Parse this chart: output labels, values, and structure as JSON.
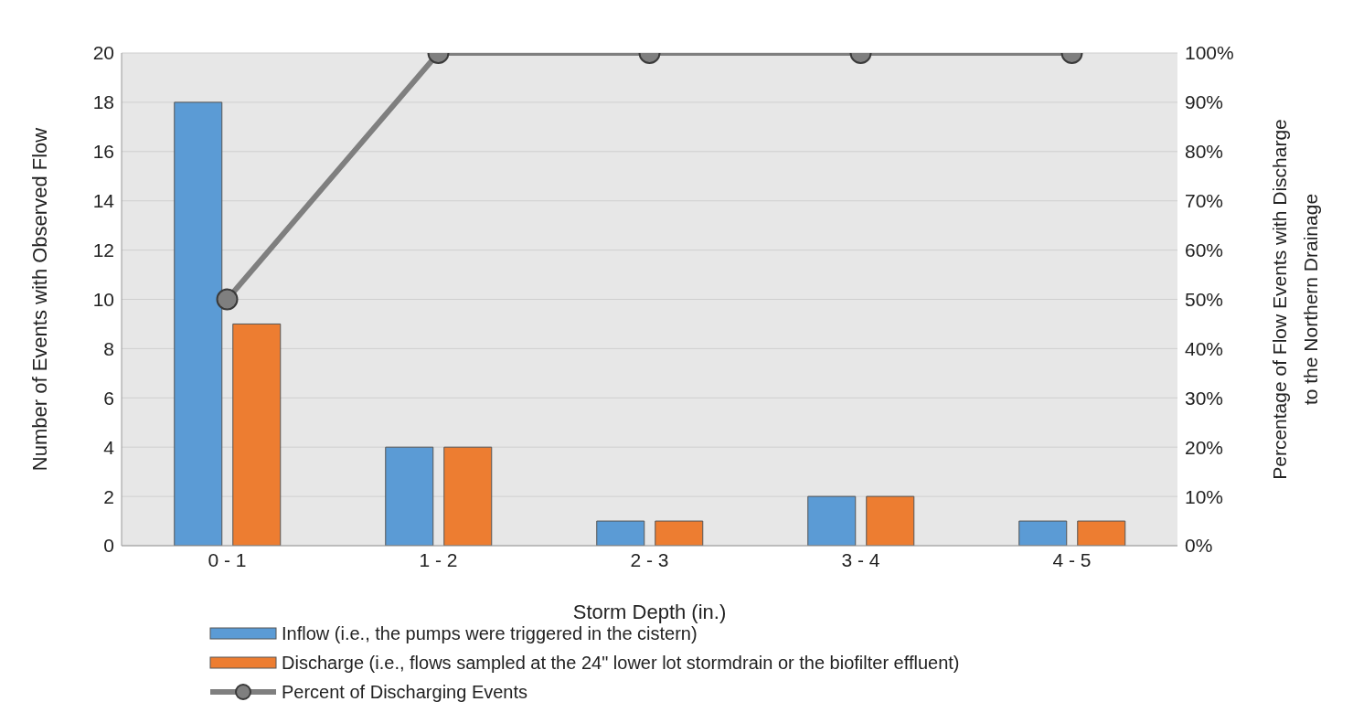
{
  "chart_data": {
    "type": "bar",
    "categories": [
      "0 - 1",
      "1 - 2",
      "2 - 3",
      "3 - 4",
      "4 - 5"
    ],
    "series": [
      {
        "name": "Inflow (i.e., the pumps were triggered in the cistern)",
        "color": "#5b9bd5",
        "values": [
          18,
          4,
          1,
          2,
          1
        ]
      },
      {
        "name": "Discharge (i.e., flows sampled at the 24\" lower lot stormdrain or the biofilter effluent)",
        "color": "#ed7d31",
        "values": [
          9,
          4,
          1,
          2,
          1
        ]
      },
      {
        "name": "Percent of Discharging Events",
        "type": "line",
        "axis": "y2",
        "color": "#7f7f7f",
        "values": [
          50,
          100,
          100,
          100,
          100
        ]
      }
    ],
    "xlabel": "Storm Depth (in.)",
    "ylabel": "Number of Events with Observed Flow",
    "y2label": "Percentage of Flow Events with Discharge to the Northern Drainage",
    "ylim": [
      0,
      20
    ],
    "yticks": [
      0,
      2,
      4,
      6,
      8,
      10,
      12,
      14,
      16,
      18,
      20
    ],
    "y2lim": [
      0,
      100
    ],
    "y2ticks": [
      {
        "value": 0,
        "label": "0%"
      },
      {
        "value": 10,
        "label": "10%"
      },
      {
        "value": 20,
        "label": "20%"
      },
      {
        "value": 30,
        "label": "30%"
      },
      {
        "value": 40,
        "label": "40%"
      },
      {
        "value": 50,
        "label": "50%"
      },
      {
        "value": 60,
        "label": "60%"
      },
      {
        "value": 70,
        "label": "70%"
      },
      {
        "value": 80,
        "label": "80%"
      },
      {
        "value": 90,
        "label": "90%"
      },
      {
        "value": 100,
        "label": "100%"
      }
    ],
    "grid": "y",
    "legend": "bottom",
    "marker": "circle"
  }
}
